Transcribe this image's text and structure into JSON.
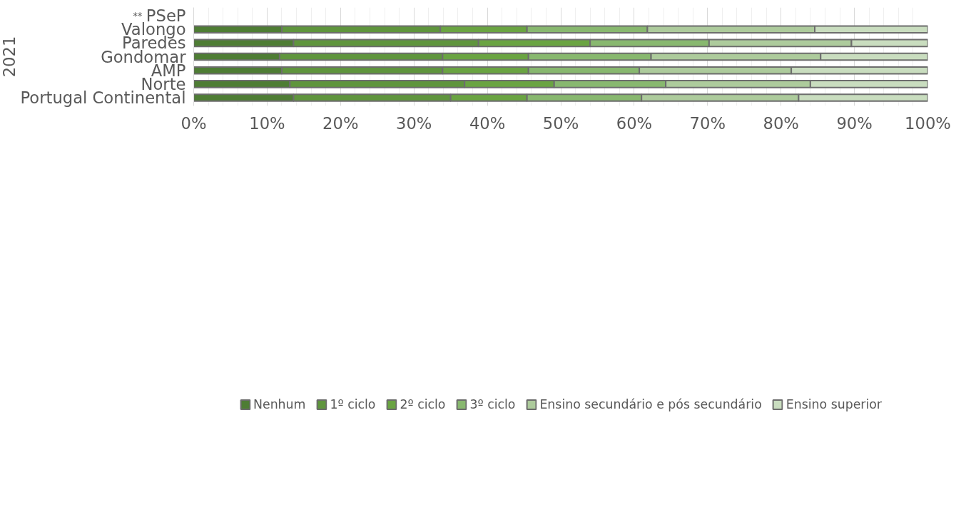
{
  "chart_data": {
    "type": "bar",
    "orientation": "horizontal",
    "stacked": true,
    "ylabel": "2021",
    "categories": [
      "PSeP",
      "Valongo",
      "Paredes",
      "Gondomar",
      "AMP",
      "Norte",
      "Portugal Continental"
    ],
    "series": [
      {
        "name": "Nenhum",
        "color": "#4e7d34",
        "values": [
          null,
          12.0,
          13.6,
          11.7,
          12.0,
          13.1,
          13.6
        ]
      },
      {
        "name": "1º ciclo",
        "color": "#5f953d",
        "values": [
          null,
          21.6,
          25.2,
          22.2,
          21.9,
          23.8,
          21.4
        ]
      },
      {
        "name": "2º ciclo",
        "color": "#6aa442",
        "values": [
          null,
          11.8,
          15.2,
          11.7,
          11.7,
          12.2,
          10.4
        ]
      },
      {
        "name": "3º ciclo",
        "color": "#88b86f",
        "values": [
          null,
          16.4,
          16.2,
          16.7,
          15.1,
          15.2,
          15.6
        ]
      },
      {
        "name": "Ensino secundário e pós secundário",
        "color": "#adcb9c",
        "values": [
          null,
          22.8,
          19.4,
          23.1,
          20.7,
          19.7,
          21.4
        ]
      },
      {
        "name": "Ensino superior",
        "color": "#c9ddbf",
        "values": [
          null,
          15.4,
          10.4,
          14.6,
          18.6,
          16.0,
          17.6
        ]
      }
    ],
    "xlim": [
      0,
      100
    ],
    "xticks": [
      {
        "value": 0,
        "label": "0%"
      },
      {
        "value": 10,
        "label": "10%"
      },
      {
        "value": 20,
        "label": "20%"
      },
      {
        "value": 30,
        "label": "30%"
      },
      {
        "value": 40,
        "label": "40%"
      },
      {
        "value": 50,
        "label": "50%"
      },
      {
        "value": 60,
        "label": "60%"
      },
      {
        "value": 70,
        "label": "70%"
      },
      {
        "value": 80,
        "label": "80%"
      },
      {
        "value": 90,
        "label": "90%"
      },
      {
        "value": 100,
        "label": "100%"
      }
    ],
    "grid": "x",
    "legend": "bottom",
    "annotations": [
      "**"
    ]
  }
}
